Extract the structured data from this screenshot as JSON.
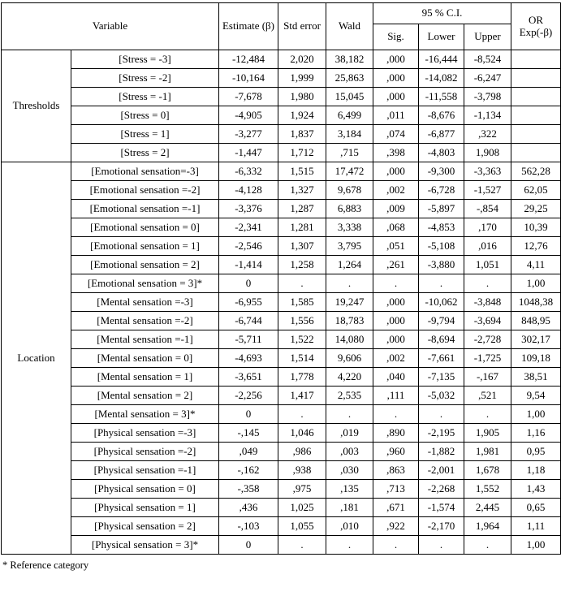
{
  "table": {
    "header": {
      "variable": "Variable",
      "estimate": "Estimate (β)",
      "std_error": "Std error",
      "wald": "Wald",
      "ci": "95 % C.I.",
      "sig": "Sig.",
      "lower": "Lower",
      "upper": "Upper",
      "or_line1": "OR",
      "or_line2": "Exp(-β)"
    },
    "groups": [
      {
        "label": "Thresholds",
        "rows": [
          {
            "variable": "[Stress = -3]",
            "values": [
              "-12,484",
              "2,020",
              "38,182",
              ",000",
              "-16,444",
              "-8,524",
              ""
            ]
          },
          {
            "variable": "[Stress = -2]",
            "values": [
              "-10,164",
              "1,999",
              "25,863",
              ",000",
              "-14,082",
              "-6,247",
              ""
            ]
          },
          {
            "variable": "[Stress = -1]",
            "values": [
              "-7,678",
              "1,980",
              "15,045",
              ",000",
              "-11,558",
              "-3,798",
              ""
            ]
          },
          {
            "variable": "[Stress = 0]",
            "values": [
              "-4,905",
              "1,924",
              "6,499",
              ",011",
              "-8,676",
              "-1,134",
              ""
            ]
          },
          {
            "variable": "[Stress = 1]",
            "values": [
              "-3,277",
              "1,837",
              "3,184",
              ",074",
              "-6,877",
              ",322",
              ""
            ]
          },
          {
            "variable": "[Stress = 2]",
            "values": [
              "-1,447",
              "1,712",
              ",715",
              ",398",
              "-4,803",
              "1,908",
              ""
            ]
          }
        ]
      },
      {
        "label": "Location",
        "rows": [
          {
            "variable": "[Emotional sensation=-3]",
            "values": [
              "-6,332",
              "1,515",
              "17,472",
              ",000",
              "-9,300",
              "-3,363",
              "562,28"
            ]
          },
          {
            "variable": "[Emotional sensation =-2]",
            "values": [
              "-4,128",
              "1,327",
              "9,678",
              ",002",
              "-6,728",
              "-1,527",
              "62,05"
            ]
          },
          {
            "variable": "[Emotional sensation =-1]",
            "values": [
              "-3,376",
              "1,287",
              "6,883",
              ",009",
              "-5,897",
              "-,854",
              "29,25"
            ]
          },
          {
            "variable": "[Emotional sensation = 0]",
            "values": [
              "-2,341",
              "1,281",
              "3,338",
              ",068",
              "-4,853",
              ",170",
              "10,39"
            ]
          },
          {
            "variable": "[Emotional sensation = 1]",
            "values": [
              "-2,546",
              "1,307",
              "3,795",
              ",051",
              "-5,108",
              ",016",
              "12,76"
            ]
          },
          {
            "variable": "[Emotional sensation = 2]",
            "values": [
              "-1,414",
              "1,258",
              "1,264",
              ",261",
              "-3,880",
              "1,051",
              "4,11"
            ]
          },
          {
            "variable": "[Emotional sensation = 3]*",
            "values": [
              "0",
              ".",
              ".",
              ".",
              ".",
              ".",
              "1,00"
            ]
          },
          {
            "variable": "[Mental sensation =-3]",
            "values": [
              "-6,955",
              "1,585",
              "19,247",
              ",000",
              "-10,062",
              "-3,848",
              "1048,38"
            ]
          },
          {
            "variable": "[Mental sensation =-2]",
            "values": [
              "-6,744",
              "1,556",
              "18,783",
              ",000",
              "-9,794",
              "-3,694",
              "848,95"
            ]
          },
          {
            "variable": "[Mental sensation =-1]",
            "values": [
              "-5,711",
              "1,522",
              "14,080",
              ",000",
              "-8,694",
              "-2,728",
              "302,17"
            ]
          },
          {
            "variable": "[Mental sensation = 0]",
            "values": [
              "-4,693",
              "1,514",
              "9,606",
              ",002",
              "-7,661",
              "-1,725",
              "109,18"
            ]
          },
          {
            "variable": "[Mental sensation = 1]",
            "values": [
              "-3,651",
              "1,778",
              "4,220",
              ",040",
              "-7,135",
              "-,167",
              "38,51"
            ]
          },
          {
            "variable": "[Mental sensation = 2]",
            "values": [
              "-2,256",
              "1,417",
              "2,535",
              ",111",
              "-5,032",
              ",521",
              "9,54"
            ]
          },
          {
            "variable": "[Mental sensation = 3]*",
            "values": [
              "0",
              ".",
              ".",
              ".",
              ".",
              ".",
              "1,00"
            ]
          },
          {
            "variable": "[Physical sensation =-3]",
            "values": [
              "-,145",
              "1,046",
              ",019",
              ",890",
              "-2,195",
              "1,905",
              "1,16"
            ]
          },
          {
            "variable": "[Physical sensation =-2]",
            "values": [
              ",049",
              ",986",
              ",003",
              ",960",
              "-1,882",
              "1,981",
              "0,95"
            ]
          },
          {
            "variable": "[Physical sensation =-1]",
            "values": [
              "-,162",
              ",938",
              ",030",
              ",863",
              "-2,001",
              "1,678",
              "1,18"
            ]
          },
          {
            "variable": "[Physical sensation = 0]",
            "values": [
              "-,358",
              ",975",
              ",135",
              ",713",
              "-2,268",
              "1,552",
              "1,43"
            ]
          },
          {
            "variable": "[Physical sensation = 1]",
            "values": [
              ",436",
              "1,025",
              ",181",
              ",671",
              "-1,574",
              "2,445",
              "0,65"
            ]
          },
          {
            "variable": "[Physical sensation = 2]",
            "values": [
              "-,103",
              "1,055",
              ",010",
              ",922",
              "-2,170",
              "1,964",
              "1,11"
            ]
          },
          {
            "variable": "[Physical sensation = 3]*",
            "values": [
              "0",
              ".",
              ".",
              ".",
              ".",
              ".",
              "1,00"
            ]
          }
        ]
      }
    ],
    "footnote": "* Reference category"
  }
}
